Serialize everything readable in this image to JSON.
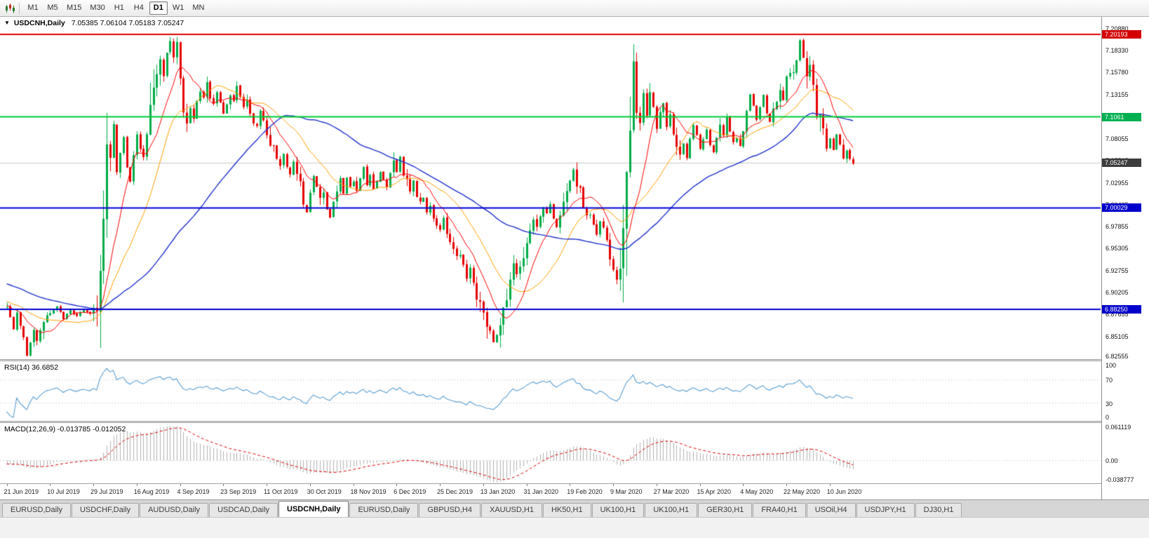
{
  "toolbar": {
    "timeframes": [
      "M1",
      "M5",
      "M15",
      "M30",
      "H1",
      "H4",
      "D1",
      "W1",
      "MN"
    ],
    "active_timeframe": "D1"
  },
  "chart": {
    "symbol": "USDCNH,Daily",
    "ohlc_text": "7.05385 7.06104 7.05183 7.05247",
    "dropdown_glyph": "▼",
    "y_axis_labels": [
      "7.20880",
      "7.18330",
      "7.15780",
      "7.13155",
      "7.10605",
      "7.08055",
      "7.05505",
      "7.02955",
      "7.00405",
      "6.97855",
      "6.95305",
      "6.92755",
      "6.90205",
      "6.87655",
      "6.85105",
      "6.82555"
    ],
    "price_badges": [
      {
        "name": "resistance-line",
        "value": "7.20193",
        "price": 7.20193,
        "color": "#d40000"
      },
      {
        "name": "green-level-line",
        "value": "7.1061",
        "price": 7.1061,
        "color": "#00b050"
      },
      {
        "name": "current-price",
        "value": "7.05247",
        "price": 7.05247,
        "color": "#3c3c3c"
      },
      {
        "name": "blue-level-line",
        "value": "7.00029",
        "price": 7.00029,
        "color": "#0000cc"
      },
      {
        "name": "support-line",
        "value": "6.88250",
        "price": 6.8825,
        "color": "#0000cc"
      }
    ],
    "x_labels": [
      "21 Jun 2019",
      "10 Jul 2019",
      "29 Jul 2019",
      "16 Aug 2019",
      "4 Sep 2019",
      "23 Sep 2019",
      "11 Oct 2019",
      "30 Oct 2019",
      "18 Nov 2019",
      "6 Dec 2019",
      "25 Dec 2019",
      "13 Jan 2020",
      "31 Jan 2020",
      "19 Feb 2020",
      "9 Mar 2020",
      "27 Mar 2020",
      "15 Apr 2020",
      "4 May 2020",
      "22 May 2020",
      "10 Jun 2020"
    ]
  },
  "rsi": {
    "label": "RSI(14) 36.6852",
    "levels": [
      {
        "text": "100",
        "value": 100
      },
      {
        "text": "70",
        "value": 70
      },
      {
        "text": "30",
        "value": 30
      },
      {
        "text": "0",
        "value": 0
      }
    ]
  },
  "macd": {
    "label": "MACD(12,26,9) -0.013785 -0.012052",
    "levels": [
      {
        "text": "0.061119",
        "value": 0.061119
      },
      {
        "text": "0.00",
        "value": 0
      },
      {
        "text": "-0.038777",
        "value": -0.038777
      }
    ]
  },
  "tabs": {
    "items": [
      {
        "label": "EURUSD,Daily",
        "active": false
      },
      {
        "label": "USDCHF,Daily",
        "active": false
      },
      {
        "label": "AUDUSD,Daily",
        "active": false
      },
      {
        "label": "USDCAD,Daily",
        "active": false
      },
      {
        "label": "USDCNH,Daily",
        "active": true
      },
      {
        "label": "EURUSD,Daily",
        "active": false
      },
      {
        "label": "GBPUSD,H4",
        "active": false
      },
      {
        "label": "XAUUSD,H1",
        "active": false
      },
      {
        "label": "HK50,H1",
        "active": false
      },
      {
        "label": "UK100,H1",
        "active": false
      },
      {
        "label": "UK100,H1",
        "active": false
      },
      {
        "label": "GER30,H1",
        "active": false
      },
      {
        "label": "FRA40,H1",
        "active": false
      },
      {
        "label": "USOil,H4",
        "active": false
      },
      {
        "label": "USDJPY,H1",
        "active": false
      },
      {
        "label": "DJ30,H1",
        "active": false
      }
    ]
  },
  "chart_data": {
    "type": "candlestick",
    "symbol": "USDCNH",
    "timeframe": "Daily",
    "last_ohlc": {
      "open": 7.05385,
      "high": 7.06104,
      "low": 7.05183,
      "close": 7.05247
    },
    "rsi_value": 36.6852,
    "macd_value": -0.013785,
    "macd_signal_value": -0.012052,
    "current_price": 7.05247,
    "y_range": {
      "top": 7.2223,
      "bottom": 6.8247
    },
    "macd_range": {
      "max": 0.066,
      "min": -0.042
    },
    "candle_count": 255,
    "x_label_indices": [
      0,
      13,
      26,
      39,
      52,
      65,
      78,
      91,
      104,
      117,
      130,
      143,
      156,
      169,
      182,
      195,
      208,
      221,
      234,
      247
    ],
    "levels": [
      {
        "price": 7.20193,
        "color": "#e00000",
        "width": 2
      },
      {
        "price": 7.1061,
        "color": "#00cc33",
        "width": 2
      },
      {
        "price": 7.00029,
        "color": "#0000d8",
        "width": 2
      },
      {
        "price": 6.8825,
        "color": "#0000d8",
        "width": 2
      }
    ],
    "ma_periods": {
      "fast": 10,
      "mid": 21,
      "slow": 55
    },
    "rsi_period": 14,
    "macd_params": [
      12,
      26,
      9
    ],
    "colors": {
      "up": "#00ab47",
      "down": "#e60000",
      "ma_fast": "#ff0000",
      "ma_mid": "#ffa000",
      "ma_slow": "#2233cc",
      "rsi": "#5a9fd4",
      "macd_hist": "#b2b2b2",
      "macd_signal": "#dd0000",
      "current_price_line": "#c9c9c9",
      "indicator_level_line": "#bdbdbd"
    },
    "seed": 7,
    "warmup_anchors": [
      [
        -60,
        6.955
      ],
      [
        -45,
        6.935
      ],
      [
        -30,
        6.915
      ],
      [
        -15,
        6.895
      ],
      [
        -1,
        6.884
      ]
    ],
    "price_anchors": [
      [
        0,
        6.882
      ],
      [
        2,
        6.862
      ],
      [
        3,
        6.875
      ],
      [
        5,
        6.845
      ],
      [
        6,
        6.828
      ],
      [
        8,
        6.862
      ],
      [
        9,
        6.843
      ],
      [
        11,
        6.87
      ],
      [
        13,
        6.878
      ],
      [
        15,
        6.885
      ],
      [
        17,
        6.872
      ],
      [
        19,
        6.882
      ],
      [
        21,
        6.874
      ],
      [
        23,
        6.882
      ],
      [
        25,
        6.878
      ],
      [
        26,
        6.884
      ],
      [
        27,
        6.893
      ],
      [
        28,
        6.92
      ],
      [
        29,
        6.975
      ],
      [
        30,
        7.045
      ],
      [
        31,
        7.065
      ],
      [
        32,
        7.095
      ],
      [
        33,
        7.042
      ],
      [
        34,
        7.06
      ],
      [
        35,
        7.082
      ],
      [
        36,
        7.048
      ],
      [
        37,
        7.032
      ],
      [
        38,
        7.062
      ],
      [
        39,
        7.085
      ],
      [
        40,
        7.068
      ],
      [
        41,
        7.058
      ],
      [
        42,
        7.082
      ],
      [
        43,
        7.102
      ],
      [
        44,
        7.132
      ],
      [
        45,
        7.162
      ],
      [
        46,
        7.176
      ],
      [
        47,
        7.158
      ],
      [
        48,
        7.182
      ],
      [
        49,
        7.194
      ],
      [
        50,
        7.172
      ],
      [
        51,
        7.186
      ],
      [
        52,
        7.148
      ],
      [
        53,
        7.118
      ],
      [
        54,
        7.104
      ],
      [
        55,
        7.116
      ],
      [
        56,
        7.108
      ],
      [
        57,
        7.126
      ],
      [
        58,
        7.142
      ],
      [
        59,
        7.13
      ],
      [
        60,
        7.146
      ],
      [
        61,
        7.128
      ],
      [
        62,
        7.118
      ],
      [
        63,
        7.136
      ],
      [
        64,
        7.124
      ],
      [
        65,
        7.11
      ],
      [
        66,
        7.122
      ],
      [
        67,
        7.136
      ],
      [
        68,
        7.124
      ],
      [
        69,
        7.142
      ],
      [
        70,
        7.128
      ],
      [
        71,
        7.114
      ],
      [
        72,
        7.126
      ],
      [
        73,
        7.108
      ],
      [
        74,
        7.098
      ],
      [
        75,
        7.094
      ],
      [
        76,
        7.112
      ],
      [
        77,
        7.098
      ],
      [
        78,
        7.084
      ],
      [
        79,
        7.07
      ],
      [
        80,
        7.076
      ],
      [
        81,
        7.058
      ],
      [
        82,
        7.052
      ],
      [
        83,
        7.066
      ],
      [
        84,
        7.048
      ],
      [
        85,
        7.038
      ],
      [
        86,
        7.056
      ],
      [
        87,
        7.044
      ],
      [
        88,
        7.028
      ],
      [
        89,
        7.008
      ],
      [
        90,
        6.994
      ],
      [
        91,
        7.018
      ],
      [
        92,
        7.036
      ],
      [
        93,
        7.024
      ],
      [
        94,
        7.008
      ],
      [
        95,
        7.016
      ],
      [
        96,
        6.998
      ],
      [
        97,
        6.988
      ],
      [
        98,
        7.006
      ],
      [
        99,
        7.022
      ],
      [
        100,
        7.032
      ],
      [
        101,
        7.018
      ],
      [
        102,
        7.036
      ],
      [
        103,
        7.024
      ],
      [
        104,
        7.03
      ],
      [
        105,
        7.018
      ],
      [
        106,
        7.036
      ],
      [
        107,
        7.046
      ],
      [
        108,
        7.028
      ],
      [
        109,
        7.036
      ],
      [
        110,
        7.022
      ],
      [
        111,
        7.03
      ],
      [
        112,
        7.042
      ],
      [
        113,
        7.034
      ],
      [
        114,
        7.024
      ],
      [
        115,
        7.04
      ],
      [
        116,
        7.056
      ],
      [
        117,
        7.042
      ],
      [
        118,
        7.064
      ],
      [
        119,
        7.038
      ],
      [
        120,
        7.028
      ],
      [
        121,
        7.018
      ],
      [
        122,
        7.03
      ],
      [
        123,
        7.014
      ],
      [
        124,
        7.004
      ],
      [
        125,
        7.012
      ],
      [
        126,
        6.994
      ],
      [
        127,
        7.002
      ],
      [
        128,
        6.99
      ],
      [
        129,
        6.98
      ],
      [
        130,
        6.976
      ],
      [
        131,
        6.986
      ],
      [
        132,
        6.974
      ],
      [
        133,
        6.964
      ],
      [
        134,
        6.954
      ],
      [
        135,
        6.944
      ],
      [
        136,
        6.95
      ],
      [
        137,
        6.934
      ],
      [
        138,
        6.924
      ],
      [
        139,
        6.93
      ],
      [
        140,
        6.914
      ],
      [
        141,
        6.9
      ],
      [
        142,
        6.894
      ],
      [
        143,
        6.884
      ],
      [
        144,
        6.868
      ],
      [
        145,
        6.858
      ],
      [
        146,
        6.844
      ],
      [
        147,
        6.856
      ],
      [
        148,
        6.866
      ],
      [
        149,
        6.882
      ],
      [
        150,
        6.898
      ],
      [
        151,
        6.922
      ],
      [
        152,
        6.932
      ],
      [
        153,
        6.924
      ],
      [
        154,
        6.936
      ],
      [
        155,
        6.946
      ],
      [
        156,
        6.96
      ],
      [
        157,
        6.976
      ],
      [
        158,
        6.986
      ],
      [
        159,
        6.978
      ],
      [
        160,
        6.99
      ],
      [
        161,
        7
      ],
      [
        162,
        6.994
      ],
      [
        163,
        7.006
      ],
      [
        164,
        6.988
      ],
      [
        165,
        6.978
      ],
      [
        166,
        6.996
      ],
      [
        167,
        7.012
      ],
      [
        168,
        7.022
      ],
      [
        169,
        7.032
      ],
      [
        170,
        7.044
      ],
      [
        171,
        7.028
      ],
      [
        172,
        7.014
      ],
      [
        173,
        6.998
      ],
      [
        174,
        6.988
      ],
      [
        175,
        6.996
      ],
      [
        176,
        6.98
      ],
      [
        177,
        6.97
      ],
      [
        178,
        6.986
      ],
      [
        179,
        6.974
      ],
      [
        180,
        6.958
      ],
      [
        181,
        6.944
      ],
      [
        182,
        6.93
      ],
      [
        183,
        6.92
      ],
      [
        184,
        6.942
      ],
      [
        185,
        6.972
      ],
      [
        186,
        7.022
      ],
      [
        187,
        7.082
      ],
      [
        188,
        7.158
      ],
      [
        189,
        7.118
      ],
      [
        190,
        7.098
      ],
      [
        191,
        7.132
      ],
      [
        192,
        7.108
      ],
      [
        193,
        7.14
      ],
      [
        194,
        7.118
      ],
      [
        195,
        7.094
      ],
      [
        196,
        7.112
      ],
      [
        197,
        7.122
      ],
      [
        198,
        7.098
      ],
      [
        199,
        7.116
      ],
      [
        200,
        7.088
      ],
      [
        201,
        7.078
      ],
      [
        202,
        7.064
      ],
      [
        203,
        7.076
      ],
      [
        204,
        7.058
      ],
      [
        205,
        7.08
      ],
      [
        206,
        7.096
      ],
      [
        207,
        7.084
      ],
      [
        208,
        7.07
      ],
      [
        209,
        7.08
      ],
      [
        210,
        7.092
      ],
      [
        211,
        7.074
      ],
      [
        212,
        7.064
      ],
      [
        213,
        7.082
      ],
      [
        214,
        7.096
      ],
      [
        215,
        7.084
      ],
      [
        216,
        7.102
      ],
      [
        217,
        7.09
      ],
      [
        218,
        7.074
      ],
      [
        219,
        7.082
      ],
      [
        220,
        7.07
      ],
      [
        221,
        7.094
      ],
      [
        222,
        7.112
      ],
      [
        223,
        7.132
      ],
      [
        224,
        7.12
      ],
      [
        225,
        7.104
      ],
      [
        226,
        7.116
      ],
      [
        227,
        7.132
      ],
      [
        228,
        7.11
      ],
      [
        229,
        7.1
      ],
      [
        230,
        7.116
      ],
      [
        231,
        7.126
      ],
      [
        232,
        7.142
      ],
      [
        233,
        7.13
      ],
      [
        234,
        7.152
      ],
      [
        235,
        7.162
      ],
      [
        236,
        7.154
      ],
      [
        237,
        7.172
      ],
      [
        238,
        7.195
      ],
      [
        239,
        7.176
      ],
      [
        240,
        7.15
      ],
      [
        241,
        7.162
      ],
      [
        242,
        7.14
      ],
      [
        243,
        7.118
      ],
      [
        244,
        7.108
      ],
      [
        245,
        7.088
      ],
      [
        246,
        7.074
      ],
      [
        247,
        7.08
      ],
      [
        248,
        7.068
      ],
      [
        249,
        7.086
      ],
      [
        250,
        7.074
      ],
      [
        251,
        7.058
      ],
      [
        252,
        7.068
      ],
      [
        253,
        7.058
      ],
      [
        254,
        7.052
      ]
    ]
  }
}
